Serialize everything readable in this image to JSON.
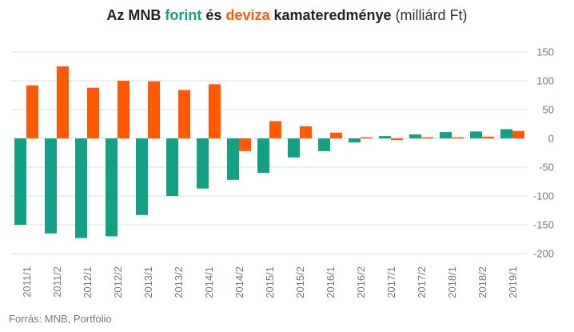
{
  "title": {
    "part1": "Az MNB ",
    "part2": "forint",
    "part3": " és ",
    "part4": "deviza",
    "part5": " kamateredménye",
    "part6": " (milliárd Ft)"
  },
  "source": "Forrás: MNB, Portfolio",
  "colors": {
    "forint": "#13a085",
    "deviza": "#ff5a00",
    "grid": "#dcdcdc",
    "axis_text": "#777777"
  },
  "chart_data": {
    "type": "bar",
    "categories": [
      "2011/1",
      "2011/2",
      "2012/1",
      "2012/2",
      "2013/1",
      "2013/2",
      "2014/1",
      "2014/2",
      "2015/1",
      "2015/2",
      "2016/1",
      "2016/2",
      "2017/1",
      "2017/2",
      "2018/1",
      "2018/2",
      "2019/1"
    ],
    "series": [
      {
        "name": "forint",
        "color": "#13a085",
        "values": [
          -150,
          -165,
          -173,
          -170,
          -133,
          -100,
          -87,
          -72,
          -60,
          -33,
          -22,
          -7,
          4,
          7,
          11,
          12,
          16
        ]
      },
      {
        "name": "deviza",
        "color": "#ff5a00",
        "values": [
          92,
          125,
          88,
          100,
          99,
          84,
          94,
          -22,
          30,
          21,
          10,
          2,
          -3,
          2,
          2,
          3,
          13
        ]
      }
    ],
    "ylim": [
      -200,
      150
    ],
    "yticks": [
      150,
      100,
      50,
      0,
      -50,
      -100,
      -150,
      -200
    ],
    "ytick_labels": [
      "150",
      "100",
      "50",
      "0",
      "-50",
      "-100",
      "-150",
      "-200"
    ],
    "xlabel": "",
    "ylabel": "",
    "grid": true,
    "legend": "none"
  }
}
